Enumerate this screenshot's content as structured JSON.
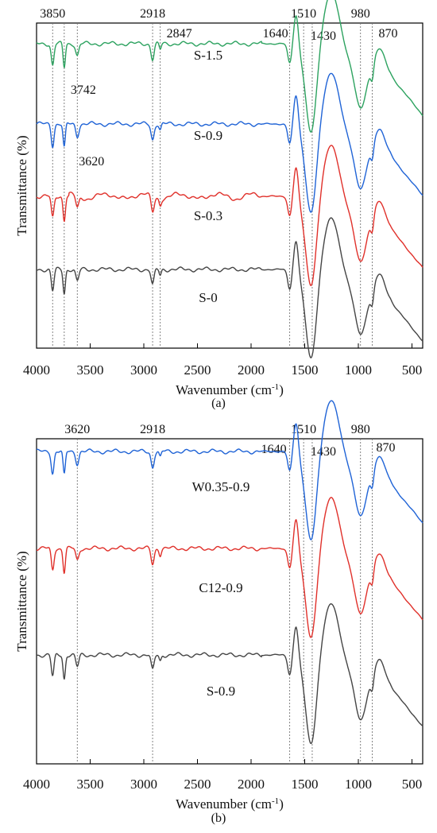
{
  "chart_data": [
    {
      "type": "line",
      "panel_label": "(a)",
      "xlabel": "Wavenumber (cm-1)",
      "ylabel": "Transmittance (%)",
      "xlim": [
        4000,
        400
      ],
      "x_reversed": true,
      "x_ticks": [
        4000,
        3500,
        3000,
        2500,
        2000,
        1500,
        1000,
        500
      ],
      "y_ticks": "none",
      "peaks": [
        {
          "x": 3850,
          "label": "3850"
        },
        {
          "x": 3742,
          "label": "3742"
        },
        {
          "x": 3620,
          "label": "3620"
        },
        {
          "x": 2918,
          "label": "2918"
        },
        {
          "x": 2847,
          "label": "2847"
        },
        {
          "x": 1640,
          "label": "1640"
        },
        {
          "x": 1510,
          "label": "1510"
        },
        {
          "x": 1430,
          "label": "1430"
        },
        {
          "x": 980,
          "label": "980"
        },
        {
          "x": 870,
          "label": "870"
        }
      ],
      "series": [
        {
          "name": "S-1.5",
          "color": "#2ca25f",
          "offset": 3.0
        },
        {
          "name": "S-0.9",
          "color": "#1f63d6",
          "offset": 2.0
        },
        {
          "name": "S-0.3",
          "color": "#e0302a",
          "offset": 1.0
        },
        {
          "name": "S-0",
          "color": "#444444",
          "offset": 0.0
        }
      ]
    },
    {
      "type": "line",
      "panel_label": "(b)",
      "xlabel": "Wavenumber (cm-1)",
      "ylabel": "Transmittance (%)",
      "xlim": [
        4000,
        400
      ],
      "x_reversed": true,
      "x_ticks": [
        4000,
        3500,
        3000,
        2500,
        2000,
        1500,
        1000,
        500
      ],
      "y_ticks": "none",
      "peaks": [
        {
          "x": 3620,
          "label": "3620"
        },
        {
          "x": 2918,
          "label": "2918"
        },
        {
          "x": 1640,
          "label": "1640"
        },
        {
          "x": 1510,
          "label": "1510"
        },
        {
          "x": 1430,
          "label": "1430"
        },
        {
          "x": 980,
          "label": "980"
        },
        {
          "x": 870,
          "label": "870"
        }
      ],
      "series": [
        {
          "name": "W0.35-0.9",
          "color": "#1f63d6",
          "offset": 2.0
        },
        {
          "name": "C12-0.9",
          "color": "#e0302a",
          "offset": 1.0
        },
        {
          "name": "S-0.9",
          "color": "#444444",
          "offset": 0.0
        }
      ]
    }
  ]
}
